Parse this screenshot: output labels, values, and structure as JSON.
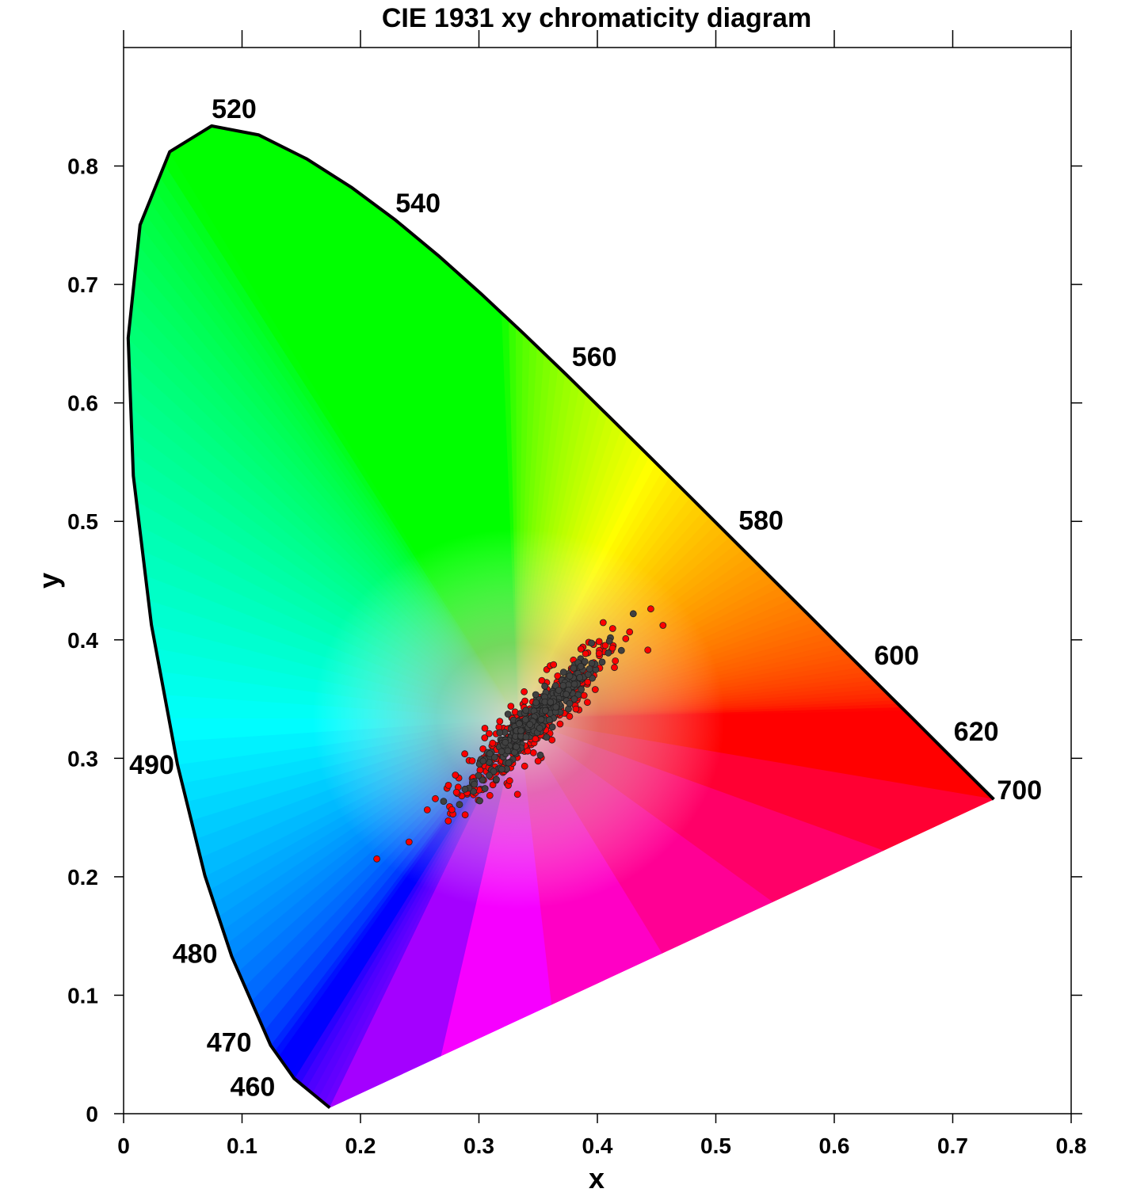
{
  "chart_data": {
    "type": "scatter",
    "title": "CIE 1931 xy chromaticity diagram",
    "xlabel": "x",
    "ylabel": "y",
    "xlim": [
      0,
      0.8
    ],
    "ylim": [
      0,
      0.9
    ],
    "x_ticks": [
      "0",
      "0.1",
      "0.2",
      "0.3",
      "0.4",
      "0.5",
      "0.6",
      "0.7",
      "0.8"
    ],
    "y_ticks": [
      "0",
      "0.1",
      "0.2",
      "0.3",
      "0.4",
      "0.5",
      "0.6",
      "0.7",
      "0.8"
    ],
    "grid": false,
    "spectral_locus": [
      [
        0.1741,
        0.005
      ],
      [
        0.144,
        0.0297
      ],
      [
        0.1241,
        0.0578
      ],
      [
        0.0913,
        0.1327
      ],
      [
        0.0687,
        0.2007
      ],
      [
        0.0454,
        0.295
      ],
      [
        0.0235,
        0.4127
      ],
      [
        0.0082,
        0.5384
      ],
      [
        0.0039,
        0.6548
      ],
      [
        0.0139,
        0.7502
      ],
      [
        0.0389,
        0.812
      ],
      [
        0.0743,
        0.8338
      ],
      [
        0.1142,
        0.8262
      ],
      [
        0.1547,
        0.8059
      ],
      [
        0.1929,
        0.7816
      ],
      [
        0.2296,
        0.7543
      ],
      [
        0.2658,
        0.7243
      ],
      [
        0.3016,
        0.6923
      ],
      [
        0.3373,
        0.6589
      ],
      [
        0.3731,
        0.6245
      ],
      [
        0.4087,
        0.5896
      ],
      [
        0.4441,
        0.5547
      ],
      [
        0.4788,
        0.5202
      ],
      [
        0.5125,
        0.4866
      ],
      [
        0.5448,
        0.4544
      ],
      [
        0.5752,
        0.4242
      ],
      [
        0.6029,
        0.3965
      ],
      [
        0.627,
        0.3725
      ],
      [
        0.6482,
        0.3514
      ],
      [
        0.6658,
        0.334
      ],
      [
        0.6915,
        0.3083
      ],
      [
        0.7347,
        0.2653
      ]
    ],
    "wavelength_labels": [
      {
        "label": "520",
        "x": 0.0743,
        "y": 0.8338
      },
      {
        "label": "540",
        "x": 0.2296,
        "y": 0.7543
      },
      {
        "label": "560",
        "x": 0.3731,
        "y": 0.6245
      },
      {
        "label": "580",
        "x": 0.5125,
        "y": 0.4866
      },
      {
        "label": "600",
        "x": 0.627,
        "y": 0.3725
      },
      {
        "label": "620",
        "x": 0.6915,
        "y": 0.3083
      },
      {
        "label": "700",
        "x": 0.7347,
        "y": 0.2653
      },
      {
        "label": "490",
        "x": 0.0454,
        "y": 0.295
      },
      {
        "label": "480",
        "x": 0.0913,
        "y": 0.1327
      },
      {
        "label": "470",
        "x": 0.1241,
        "y": 0.0578
      },
      {
        "label": "460",
        "x": 0.144,
        "y": 0.0297
      }
    ],
    "series": [
      {
        "color": "#ff0000",
        "center": [
          0.345,
          0.33
        ],
        "spread_along": 0.1,
        "spread_across": 0.02,
        "count": 320
      },
      {
        "color": "#404040",
        "center": [
          0.35,
          0.335
        ],
        "spread_along": 0.075,
        "spread_across": 0.012,
        "count": 360
      }
    ]
  }
}
